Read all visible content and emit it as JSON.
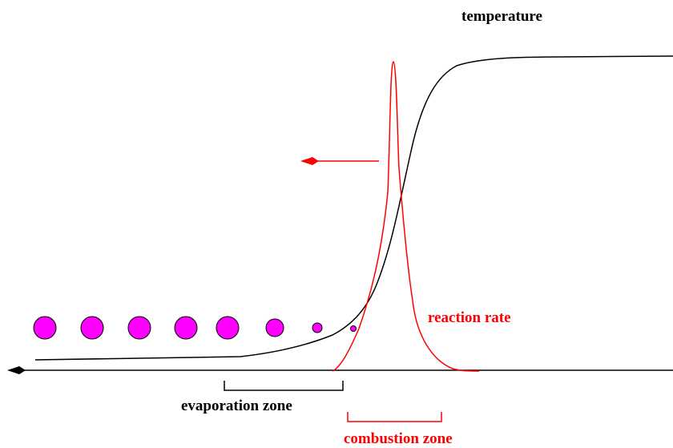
{
  "labels": {
    "temperature": "temperature",
    "reaction_rate": "reaction rate",
    "evaporation_zone": "evaporation zone",
    "combustion_zone": "combustion zone"
  },
  "colors": {
    "black": "#000000",
    "red": "#ff0000",
    "droplet_fill": "#ff00ff"
  },
  "droplets": {
    "count": 8,
    "shown_as": "magenta circles shrinking in size toward the flame front"
  }
}
